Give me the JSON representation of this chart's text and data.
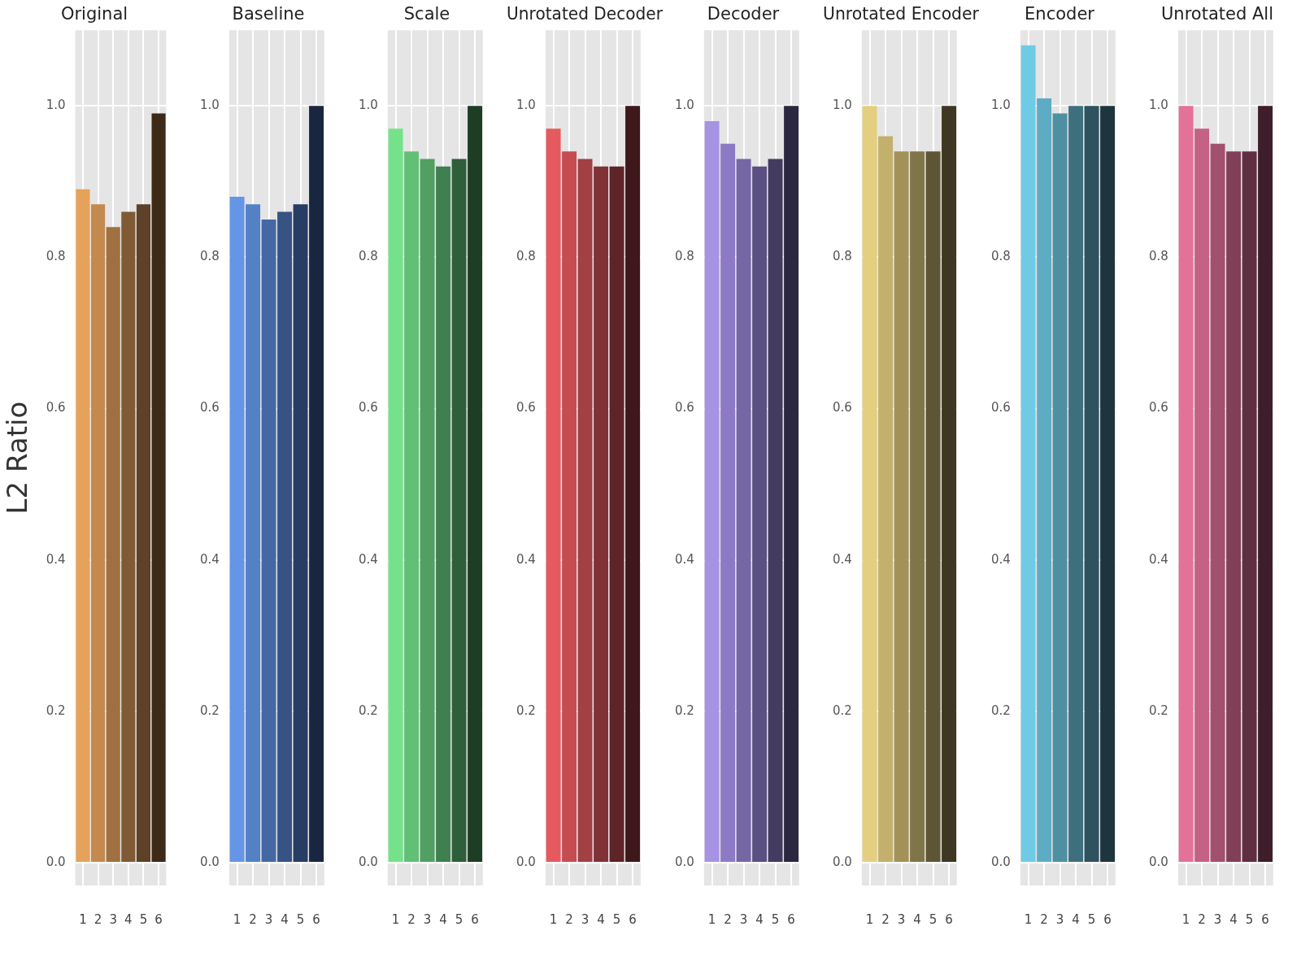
{
  "chart_data": [
    {
      "type": "bar",
      "title": "Original",
      "ylabel": "L2 Ratio",
      "categories": [
        "1",
        "2",
        "3",
        "4",
        "5",
        "6"
      ],
      "values": [
        0.89,
        0.87,
        0.84,
        0.86,
        0.87,
        0.99
      ],
      "colors": [
        "#e6a15a",
        "#c4894e",
        "#a07040",
        "#7f5a34",
        "#5e4126",
        "#3d2a17"
      ],
      "ylim": [
        -0.03,
        1.1
      ],
      "yticks": [
        {
          "value": 0,
          "label": "0.0"
        },
        {
          "value": 0.2,
          "label": "0.2"
        },
        {
          "value": 0.4,
          "label": "0.4"
        },
        {
          "value": 0.6,
          "label": "0.6"
        },
        {
          "value": 0.8,
          "label": "0.8"
        },
        {
          "value": 1,
          "label": "1.0"
        }
      ],
      "grid": true
    },
    {
      "type": "bar",
      "title": "Baseline",
      "categories": [
        "1",
        "2",
        "3",
        "4",
        "5",
        "6"
      ],
      "values": [
        0.88,
        0.87,
        0.85,
        0.86,
        0.87,
        1.0
      ],
      "colors": [
        "#6495e6",
        "#5480c6",
        "#4568a4",
        "#375384",
        "#283d63",
        "#1a2640"
      ],
      "ylim": [
        -0.03,
        1.1
      ],
      "yticks": [
        {
          "value": 0,
          "label": "0.0"
        },
        {
          "value": 0.2,
          "label": "0.2"
        },
        {
          "value": 0.4,
          "label": "0.4"
        },
        {
          "value": 0.6,
          "label": "0.6"
        },
        {
          "value": 0.8,
          "label": "0.8"
        },
        {
          "value": 1,
          "label": "1.0"
        }
      ],
      "grid": true
    },
    {
      "type": "bar",
      "title": "Scale",
      "categories": [
        "1",
        "2",
        "3",
        "4",
        "5",
        "6"
      ],
      "values": [
        0.97,
        0.94,
        0.93,
        0.92,
        0.93,
        1.0
      ],
      "colors": [
        "#74e28a",
        "#62c076",
        "#519f62",
        "#407f4f",
        "#2e5e3a",
        "#1d3d25"
      ],
      "ylim": [
        -0.03,
        1.1
      ],
      "yticks": [
        {
          "value": 0,
          "label": "0.0"
        },
        {
          "value": 0.2,
          "label": "0.2"
        },
        {
          "value": 0.4,
          "label": "0.4"
        },
        {
          "value": 0.6,
          "label": "0.6"
        },
        {
          "value": 0.8,
          "label": "0.8"
        },
        {
          "value": 1,
          "label": "1.0"
        }
      ],
      "grid": true
    },
    {
      "type": "bar",
      "title": "Unrotated Decoder",
      "categories": [
        "1",
        "2",
        "3",
        "4",
        "5",
        "6"
      ],
      "values": [
        0.97,
        0.94,
        0.93,
        0.92,
        0.92,
        1.0
      ],
      "colors": [
        "#e45a5e",
        "#c54c50",
        "#a24043",
        "#813236",
        "#5f2428",
        "#3e181a"
      ],
      "ylim": [
        -0.03,
        1.1
      ],
      "yticks": [
        {
          "value": 0,
          "label": "0.0"
        },
        {
          "value": 0.2,
          "label": "0.2"
        },
        {
          "value": 0.4,
          "label": "0.4"
        },
        {
          "value": 0.6,
          "label": "0.6"
        },
        {
          "value": 0.8,
          "label": "0.8"
        },
        {
          "value": 1,
          "label": "1.0"
        }
      ],
      "grid": true
    },
    {
      "type": "bar",
      "title": "Decoder",
      "categories": [
        "1",
        "2",
        "3",
        "4",
        "5",
        "6"
      ],
      "values": [
        0.98,
        0.95,
        0.93,
        0.92,
        0.93,
        1.0
      ],
      "colors": [
        "#a693e4",
        "#8c7bc4",
        "#7467a3",
        "#5a5082",
        "#433c60",
        "#2b2740"
      ],
      "ylim": [
        -0.03,
        1.1
      ],
      "yticks": [
        {
          "value": 0,
          "label": "0.0"
        },
        {
          "value": 0.2,
          "label": "0.2"
        },
        {
          "value": 0.4,
          "label": "0.4"
        },
        {
          "value": 0.6,
          "label": "0.6"
        },
        {
          "value": 0.8,
          "label": "0.8"
        },
        {
          "value": 1,
          "label": "1.0"
        }
      ],
      "grid": true
    },
    {
      "type": "bar",
      "title": "Unrotated Encoder",
      "categories": [
        "1",
        "2",
        "3",
        "4",
        "5",
        "6"
      ],
      "values": [
        1.0,
        0.96,
        0.94,
        0.94,
        0.94,
        1.0
      ],
      "colors": [
        "#e4cf80",
        "#c3b06c",
        "#a29259",
        "#807548",
        "#5e5534",
        "#3e3722"
      ],
      "ylim": [
        -0.03,
        1.1
      ],
      "yticks": [
        {
          "value": 0,
          "label": "0.0"
        },
        {
          "value": 0.2,
          "label": "0.2"
        },
        {
          "value": 0.4,
          "label": "0.4"
        },
        {
          "value": 0.6,
          "label": "0.6"
        },
        {
          "value": 0.8,
          "label": "0.8"
        },
        {
          "value": 1,
          "label": "1.0"
        }
      ],
      "grid": true
    },
    {
      "type": "bar",
      "title": "Encoder",
      "categories": [
        "1",
        "2",
        "3",
        "4",
        "5",
        "6"
      ],
      "values": [
        1.08,
        1.01,
        0.99,
        1.0,
        1.0,
        1.0
      ],
      "colors": [
        "#6fcbe3",
        "#5eacc4",
        "#4f8fa2",
        "#3e6f7f",
        "#2e525e",
        "#1e353d"
      ],
      "ylim": [
        -0.03,
        1.1
      ],
      "yticks": [
        {
          "value": 0,
          "label": "0.0"
        },
        {
          "value": 0.2,
          "label": "0.2"
        },
        {
          "value": 0.4,
          "label": "0.4"
        },
        {
          "value": 0.6,
          "label": "0.6"
        },
        {
          "value": 0.8,
          "label": "0.8"
        },
        {
          "value": 1,
          "label": "1.0"
        }
      ],
      "grid": true
    },
    {
      "type": "bar",
      "title": "Unrotated All",
      "categories": [
        "1",
        "2",
        "3",
        "4",
        "5",
        "6"
      ],
      "values": [
        1.0,
        0.97,
        0.95,
        0.94,
        0.94,
        1.0
      ],
      "colors": [
        "#e47298",
        "#c46184",
        "#a3506e",
        "#813f58",
        "#5f2e41",
        "#3e1e2a"
      ],
      "ylim": [
        -0.03,
        1.1
      ],
      "yticks": [
        {
          "value": 0,
          "label": "0.0"
        },
        {
          "value": 0.2,
          "label": "0.2"
        },
        {
          "value": 0.4,
          "label": "0.4"
        },
        {
          "value": 0.6,
          "label": "0.6"
        },
        {
          "value": 0.8,
          "label": "0.8"
        },
        {
          "value": 1,
          "label": "1.0"
        }
      ],
      "grid": true
    }
  ]
}
